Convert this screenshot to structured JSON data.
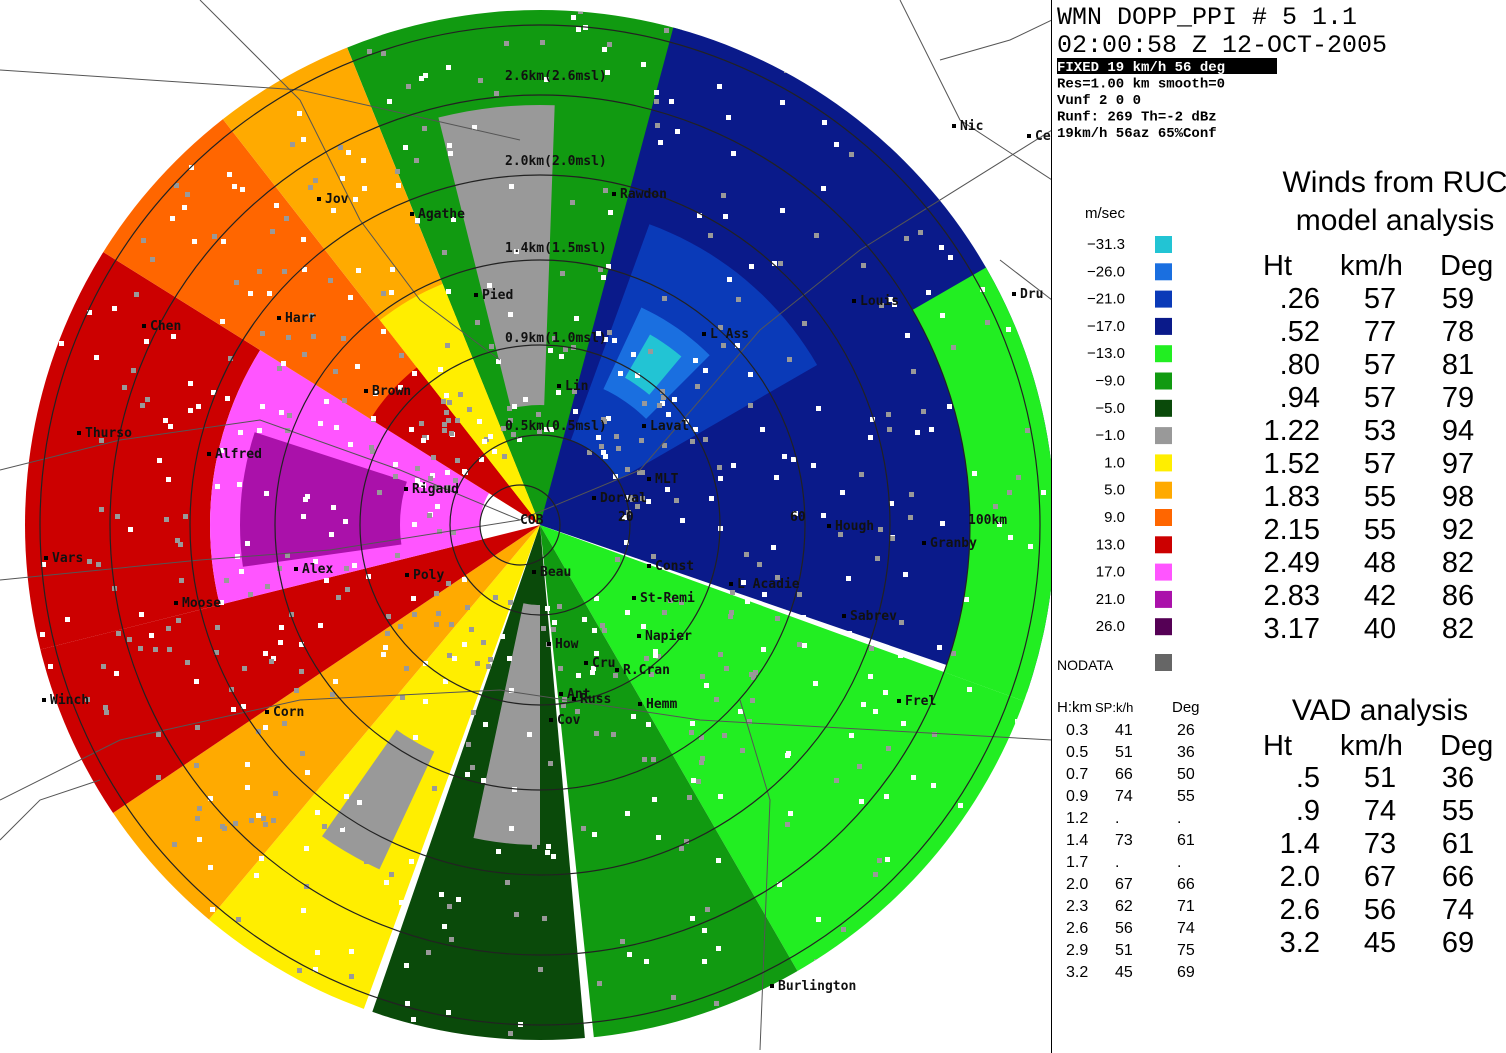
{
  "header": {
    "lines": [
      "WMN  DOPP_PPI # 5  1.1",
      "02:00:58 Z 12-OCT-2005",
      "FIXED  19 km/h  56 deg",
      "Res=1.00 km  smooth=0",
      "Vunf     2     0     0",
      "Runf:   269 Th=-2 dBz",
      " 19km/h  56az  65%Conf"
    ]
  },
  "legend": {
    "unit": "m/sec",
    "items": [
      {
        "label": "−31.3",
        "color": "#22c4d4"
      },
      {
        "label": "−26.0",
        "color": "#1a6fe0"
      },
      {
        "label": "−21.0",
        "color": "#0a3ab8"
      },
      {
        "label": "−17.0",
        "color": "#0a1a8a"
      },
      {
        "label": "−13.0",
        "color": "#22ee22"
      },
      {
        "label": "−9.0",
        "color": "#119a11"
      },
      {
        "label": "−5.0",
        "color": "#0a4a0a"
      },
      {
        "label": "−1.0",
        "color": "#999999"
      },
      {
        "label": "1.0",
        "color": "#ffee00"
      },
      {
        "label": "5.0",
        "color": "#ffaa00"
      },
      {
        "label": "9.0",
        "color": "#ff6600"
      },
      {
        "label": "13.0",
        "color": "#cc0000"
      },
      {
        "label": "17.0",
        "color": "#ff55ff"
      },
      {
        "label": "21.0",
        "color": "#aa11aa"
      },
      {
        "label": "26.0",
        "color": "#550055"
      }
    ],
    "nodata": {
      "label": "NODATA",
      "color": "#666666"
    }
  },
  "vad_small": {
    "headers": [
      "H:km",
      "SP:k/h",
      "Deg"
    ],
    "rows": [
      [
        "0.3",
        "41",
        "26"
      ],
      [
        "0.5",
        "51",
        "36"
      ],
      [
        "0.7",
        "66",
        "50"
      ],
      [
        "0.9",
        "74",
        "55"
      ],
      [
        "1.2",
        ".",
        "."
      ],
      [
        "1.4",
        "73",
        "61"
      ],
      [
        "1.7",
        ".",
        "."
      ],
      [
        "2.0",
        "67",
        "66"
      ],
      [
        "2.3",
        "62",
        "71"
      ],
      [
        "2.6",
        "56",
        "74"
      ],
      [
        "2.9",
        "51",
        "75"
      ],
      [
        "3.2",
        "45",
        "69"
      ]
    ]
  },
  "ruc": {
    "title": [
      "Winds from RUC",
      "model analysis"
    ],
    "headers": [
      "Ht",
      "km/h",
      "Deg"
    ],
    "rows": [
      [
        ".26",
        "57",
        "59"
      ],
      [
        ".52",
        "77",
        "78"
      ],
      [
        ".80",
        "57",
        "81"
      ],
      [
        ".94",
        "57",
        "79"
      ],
      [
        "1.22",
        "53",
        "94"
      ],
      [
        "1.52",
        "57",
        "97"
      ],
      [
        "1.83",
        "55",
        "98"
      ],
      [
        "2.15",
        "55",
        "92"
      ],
      [
        "2.49",
        "48",
        "82"
      ],
      [
        "2.83",
        "42",
        "86"
      ],
      [
        "3.17",
        "40",
        "82"
      ]
    ]
  },
  "vad": {
    "title": "VAD analysis",
    "headers": [
      "Ht",
      "km/h",
      "Deg"
    ],
    "rows": [
      [
        ".5",
        "51",
        "36"
      ],
      [
        ".9",
        "74",
        "55"
      ],
      [
        "1.4",
        "73",
        "61"
      ],
      [
        "2.0",
        "67",
        "66"
      ],
      [
        "2.6",
        "56",
        "74"
      ],
      [
        "3.2",
        "45",
        "69"
      ]
    ]
  },
  "map_labels": [
    "Jov",
    "Agathe",
    "Rawdon",
    "Pied",
    "Harr",
    "Chen",
    "Brown",
    "Thurso",
    "Alfred",
    "Rigaud",
    "Lin",
    "Laval",
    "Dorval",
    "MLT",
    "Vars",
    "Alex",
    "Poly",
    "Beau",
    "Moose",
    "Const",
    "St-Remi",
    "L Acadie",
    "Sabrev",
    "How",
    "Napier",
    "Cru",
    "R.Cran",
    "Ant",
    "Russ",
    "Hemm",
    "Cov",
    "Winch",
    "Corn",
    "Frel",
    "Granby",
    "Hough",
    "Burlington",
    "Nic",
    "Ce",
    "Dru",
    "L Ass",
    "Louis"
  ],
  "ring_labels": [
    "2.6km(2.6msl)",
    "2.0km(2.0msl)",
    "1.4km(1.5msl)",
    "0.9km(1.0msl)",
    "0.5km(0.5msl)",
    "20",
    "60",
    "100km",
    "COB"
  ]
}
